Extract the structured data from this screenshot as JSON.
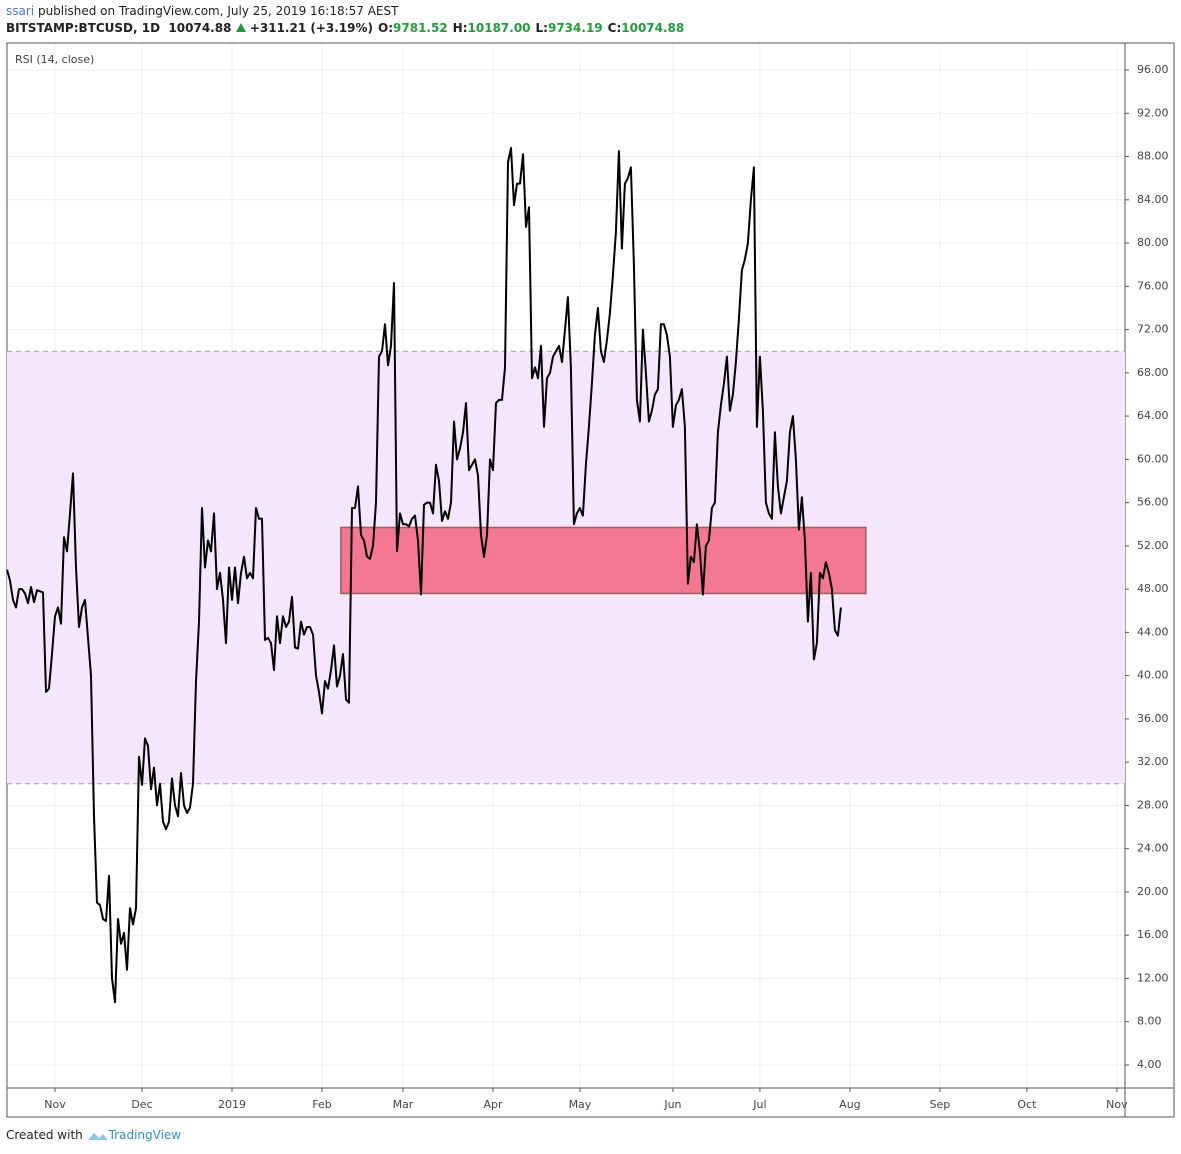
{
  "header": {
    "publisher": "ssari",
    "published": "published on TradingView.com, July 25, 2019 16:18:57 AEST",
    "symbol": "BITSTAMP:BTCUSD, 1D",
    "last": "10074.88",
    "change": "+311.21 (+3.19%)",
    "ohlc": [
      {
        "key": "O:",
        "value": "9781.52"
      },
      {
        "key": "H:",
        "value": "10187.00"
      },
      {
        "key": "L:",
        "value": "9734.19"
      },
      {
        "key": "C:",
        "value": "10074.88"
      }
    ]
  },
  "footer": {
    "prefix": "Created with",
    "brand": "TradingView"
  },
  "chart_data": {
    "type": "line",
    "title": "RSI (14, close)",
    "color": "#000000",
    "values": [
      49.8,
      48.8,
      47,
      46.3,
      48,
      48,
      47.6,
      46.7,
      48.2,
      46.8,
      47.9,
      47.8,
      47.7,
      38.5,
      38.8,
      42,
      45.5,
      46.3,
      44.8,
      52.8,
      51.5,
      55,
      58.7,
      50,
      44.5,
      46.3,
      47,
      43.5,
      40,
      27,
      19,
      18.8,
      17.5,
      17.3,
      21.5,
      12,
      9.8,
      17.5,
      15.2,
      16.2,
      12.8,
      18.5,
      17,
      18.5,
      32.5,
      29.9,
      34.2,
      33.5,
      29.5,
      31.5,
      28,
      30,
      26.5,
      25.8,
      26.5,
      30.5,
      28,
      27,
      31,
      28,
      27.3,
      27.8,
      30,
      39.5,
      45,
      55.5,
      50,
      52.5,
      51.5,
      55,
      48,
      49.5,
      47,
      43,
      50,
      47,
      50,
      46.7,
      49.5,
      51,
      49,
      49.5,
      49,
      55.5,
      54.5,
      54.5,
      43.3,
      43.5,
      43,
      40.5,
      45.5,
      43,
      45.5,
      44.5,
      45,
      47.3,
      42.6,
      42.5,
      45,
      43.8,
      44.5,
      44.5,
      43.8,
      40,
      38.5,
      36.5,
      39.5,
      38.8,
      40.5,
      42.8,
      39,
      40,
      42,
      37.8,
      37.5,
      55.5,
      55.5,
      57.5,
      53,
      52.5,
      51,
      50.8,
      52,
      56,
      69.5,
      70,
      72.5,
      68.7,
      70.5,
      76.3,
      51.5,
      55,
      54,
      54,
      53.8,
      54.5,
      54.8,
      52.5,
      47.5,
      55.8,
      56,
      56,
      55,
      59.5,
      58,
      54.3,
      55.2,
      54.5,
      56,
      63.5,
      60,
      61,
      62.5,
      65.2,
      59,
      59.5,
      60,
      58.5,
      53,
      51,
      53,
      60,
      59,
      65.2,
      65.5,
      65.5,
      68.5,
      87.5,
      88.8,
      83.5,
      85.5,
      85.5,
      88.2,
      81.5,
      83.3,
      67.5,
      68.5,
      67.5,
      70.5,
      63,
      67.5,
      68,
      69.5,
      70,
      70.5,
      69,
      72,
      75,
      68.5,
      54,
      55,
      55.5,
      54.8,
      59.5,
      63,
      67,
      71.5,
      74,
      70,
      69,
      71,
      73.5,
      77,
      81,
      88.5,
      79.5,
      85.5,
      86,
      87,
      78,
      65.5,
      63.5,
      72,
      68,
      63.5,
      64.5,
      66,
      66.5,
      72.5,
      72.5,
      71.5,
      69.5,
      63,
      65,
      65.5,
      66.5,
      63,
      48.5,
      51,
      50.5,
      54,
      51.5,
      47.5,
      52,
      52.5,
      55.5,
      56,
      62.5,
      65,
      67,
      69.5,
      64.5,
      66,
      69,
      73,
      77.5,
      78.5,
      80,
      84,
      87,
      63,
      69.5,
      64.5,
      56,
      55,
      54.5,
      62.5,
      57.5,
      55,
      56.5,
      58,
      62.5,
      64,
      60,
      53.5,
      56.5,
      52.5,
      45,
      49.5,
      41.5,
      43,
      49.5,
      49,
      50.5,
      49.5,
      48,
      44.2,
      43.7,
      46.3
    ],
    "xlim": [
      0,
      372.7
    ],
    "xticks": [
      {
        "value": 16,
        "label": "Nov"
      },
      {
        "value": 45,
        "label": "Dec"
      },
      {
        "value": 75,
        "label": "2019"
      },
      {
        "value": 105,
        "label": "Feb"
      },
      {
        "value": 132,
        "label": "Mar"
      },
      {
        "value": 162,
        "label": "Apr"
      },
      {
        "value": 191,
        "label": "May"
      },
      {
        "value": 222,
        "label": "Jun"
      },
      {
        "value": 251,
        "label": "Jul"
      },
      {
        "value": 281,
        "label": "Aug"
      },
      {
        "value": 311,
        "label": "Sep"
      },
      {
        "value": 340,
        "label": "Oct"
      },
      {
        "value": 370,
        "label": "Nov"
      }
    ],
    "ylim": [
      1.87,
      98.5
    ],
    "yticks": [
      {
        "value": 4,
        "label": "4.00"
      },
      {
        "value": 8,
        "label": "8.00"
      },
      {
        "value": 12,
        "label": "12.00"
      },
      {
        "value": 16,
        "label": "16.00"
      },
      {
        "value": 20,
        "label": "20.00"
      },
      {
        "value": 24,
        "label": "24.00"
      },
      {
        "value": 28,
        "label": "28.00"
      },
      {
        "value": 32,
        "label": "32.00"
      },
      {
        "value": 36,
        "label": "36.00"
      },
      {
        "value": 40,
        "label": "40.00"
      },
      {
        "value": 44,
        "label": "44.00"
      },
      {
        "value": 48,
        "label": "48.00"
      },
      {
        "value": 52,
        "label": "52.00"
      },
      {
        "value": 56,
        "label": "56.00"
      },
      {
        "value": 60,
        "label": "60.00"
      },
      {
        "value": 64,
        "label": "64.00"
      },
      {
        "value": 68,
        "label": "68.00"
      },
      {
        "value": 72,
        "label": "72.00"
      },
      {
        "value": 76,
        "label": "76.00"
      },
      {
        "value": 80,
        "label": "80.00"
      },
      {
        "value": 84,
        "label": "84.00"
      },
      {
        "value": 88,
        "label": "88.00"
      },
      {
        "value": 92,
        "label": "92.00"
      },
      {
        "value": 96,
        "label": "96.00"
      }
    ],
    "grid": true,
    "band": {
      "ylim": [
        30,
        70
      ],
      "color": "#f3e6fd"
    },
    "zone": {
      "xlim": [
        111.3,
        286.3
      ],
      "ylim": [
        47.6,
        53.7
      ],
      "color": "#f46b85"
    }
  }
}
